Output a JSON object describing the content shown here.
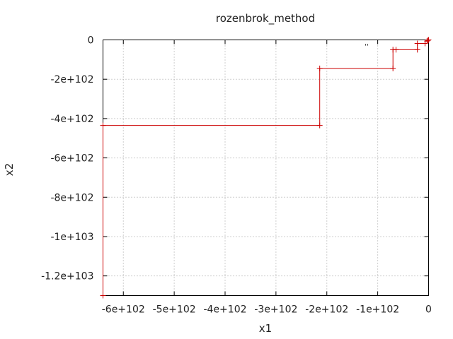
{
  "chart_data": {
    "type": "line",
    "title": "rozenbrok_method",
    "xlabel": "x1",
    "ylabel": "x2",
    "xlim": [
      -640,
      0
    ],
    "ylim": [
      -1300,
      0
    ],
    "grid": true,
    "legend_position": "top-right",
    "x_ticks": [
      {
        "value": -600,
        "label": "-6e+102"
      },
      {
        "value": -500,
        "label": "-5e+102"
      },
      {
        "value": -400,
        "label": "-4e+102"
      },
      {
        "value": -300,
        "label": "-3e+102"
      },
      {
        "value": -200,
        "label": "-2e+102"
      },
      {
        "value": -100,
        "label": "-1e+102"
      },
      {
        "value": 0,
        "label": "0"
      }
    ],
    "y_ticks": [
      {
        "value": 0,
        "label": "0"
      },
      {
        "value": -200,
        "label": "-2e+102"
      },
      {
        "value": -400,
        "label": "-4e+102"
      },
      {
        "value": -600,
        "label": "-6e+102"
      },
      {
        "value": -800,
        "label": "-8e+102"
      },
      {
        "value": -1000,
        "label": "-1e+103"
      },
      {
        "value": -1200,
        "label": "-1.2e+103"
      }
    ],
    "series": [
      {
        "name": "''",
        "color": "#cc0000",
        "points": [
          {
            "x": -640,
            "y": -1300
          },
          {
            "x": -640,
            "y": -435
          },
          {
            "x": -214,
            "y": -435
          },
          {
            "x": -214,
            "y": -145
          },
          {
            "x": -70,
            "y": -145
          },
          {
            "x": -70,
            "y": -50
          },
          {
            "x": -22,
            "y": -50
          },
          {
            "x": -22,
            "y": -18
          },
          {
            "x": -7,
            "y": -18
          },
          {
            "x": -7,
            "y": -6
          },
          {
            "x": -3,
            "y": -6
          },
          {
            "x": -3,
            "y": -2
          },
          {
            "x": -1,
            "y": -2
          },
          {
            "x": -1,
            "y": -1
          },
          {
            "x": 0,
            "y": -1
          },
          {
            "x": 0,
            "y": 0
          }
        ],
        "markers": [
          {
            "x": -640,
            "y": -1300
          },
          {
            "x": -640,
            "y": -435
          },
          {
            "x": -214,
            "y": -435
          },
          {
            "x": -214,
            "y": -145
          },
          {
            "x": -70,
            "y": -145
          },
          {
            "x": -70,
            "y": -50
          },
          {
            "x": -64,
            "y": -50
          },
          {
            "x": -22,
            "y": -50
          },
          {
            "x": -22,
            "y": -18
          },
          {
            "x": -7,
            "y": -18
          },
          {
            "x": -3,
            "y": -6
          },
          {
            "x": -1,
            "y": -2
          },
          {
            "x": 0,
            "y": 0
          }
        ]
      }
    ]
  }
}
